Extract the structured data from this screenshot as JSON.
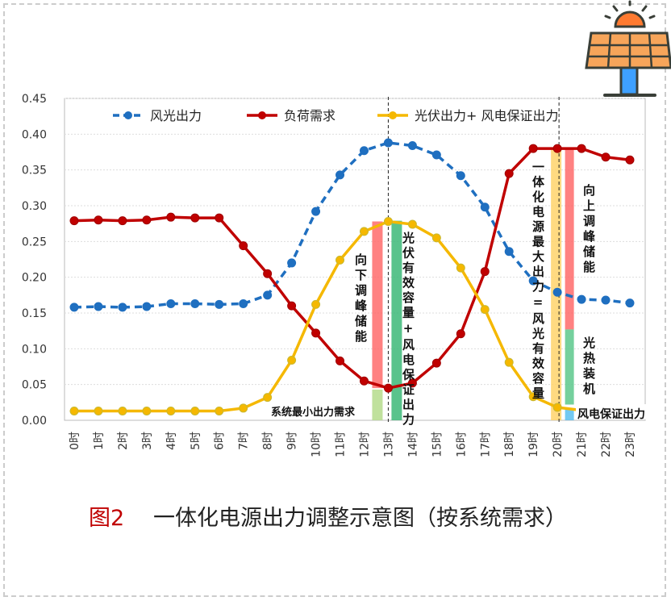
{
  "chart_data": {
    "type": "line",
    "title": "一体化电源出力调整示意图（按系统需求）",
    "figure_label": "图2",
    "xlabel": "",
    "ylabel": "",
    "ylim": [
      0,
      0.45
    ],
    "yticks": [
      "0.00",
      "0.05",
      "0.10",
      "0.15",
      "0.20",
      "0.25",
      "0.30",
      "0.35",
      "0.40",
      "0.45"
    ],
    "categories": [
      "0时",
      "1时",
      "2时",
      "3时",
      "4时",
      "5时",
      "6时",
      "7时",
      "8时",
      "9时",
      "10时",
      "11时",
      "12时",
      "13时",
      "14时",
      "15时",
      "16时",
      "17时",
      "18时",
      "19时",
      "20时",
      "21时",
      "22时",
      "23时"
    ],
    "legend_position": "top",
    "grid": true,
    "series": [
      {
        "name": "风光出力",
        "color": "#1f6fc0",
        "dashed": true,
        "values": [
          0.158,
          0.159,
          0.158,
          0.159,
          0.163,
          0.163,
          0.162,
          0.163,
          0.175,
          0.22,
          0.292,
          0.343,
          0.377,
          0.388,
          0.384,
          0.371,
          0.342,
          0.298,
          0.236,
          0.195,
          0.179,
          0.169,
          0.168,
          0.164
        ]
      },
      {
        "name": "负荷需求",
        "color": "#c00000",
        "dashed": false,
        "values": [
          0.279,
          0.28,
          0.279,
          0.28,
          0.284,
          0.283,
          0.283,
          0.244,
          0.205,
          0.16,
          0.122,
          0.083,
          0.055,
          0.045,
          0.052,
          0.08,
          0.121,
          0.208,
          0.345,
          0.38,
          0.38,
          0.38,
          0.368,
          0.364
        ]
      },
      {
        "name": "光伏出力+ 风电保证出力",
        "color": "#f5b800",
        "dashed": false,
        "values": [
          0.013,
          0.013,
          0.013,
          0.013,
          0.013,
          0.013,
          0.013,
          0.017,
          0.032,
          0.084,
          0.162,
          0.224,
          0.264,
          0.278,
          0.274,
          0.255,
          0.213,
          0.155,
          0.081,
          0.033,
          0.018,
          0.014,
          0.013,
          0.013
        ]
      }
    ],
    "bars": [
      {
        "x": 12.55,
        "from": 0.045,
        "to": 0.278,
        "color": "#ff6b6b",
        "label": "向下调峰储能"
      },
      {
        "x": 12.55,
        "from": 0,
        "to": 0.043,
        "color": "#b5dc8c",
        "label": "系统最小出力需求"
      },
      {
        "x": 13.35,
        "from": 0,
        "to": 0.279,
        "color": "#3cb878",
        "label": "光伏有效容量+风电保证出力"
      },
      {
        "x": 19.95,
        "from": 0,
        "to": 0.38,
        "color": "#ffd36b",
        "label": "一体化电源最大出力=风光有效容量"
      },
      {
        "x": 20.5,
        "from": 0.127,
        "to": 0.38,
        "color": "#ff6b6b",
        "label": "向上调峰储能"
      },
      {
        "x": 20.5,
        "from": 0.022,
        "to": 0.127,
        "color": "#5cc88c",
        "label": "光热装机"
      },
      {
        "x": 20.5,
        "from": 0,
        "to": 0.015,
        "color": "#5bc0f0",
        "label": "风电保证出力"
      }
    ],
    "vlines": [
      13,
      20
    ]
  }
}
